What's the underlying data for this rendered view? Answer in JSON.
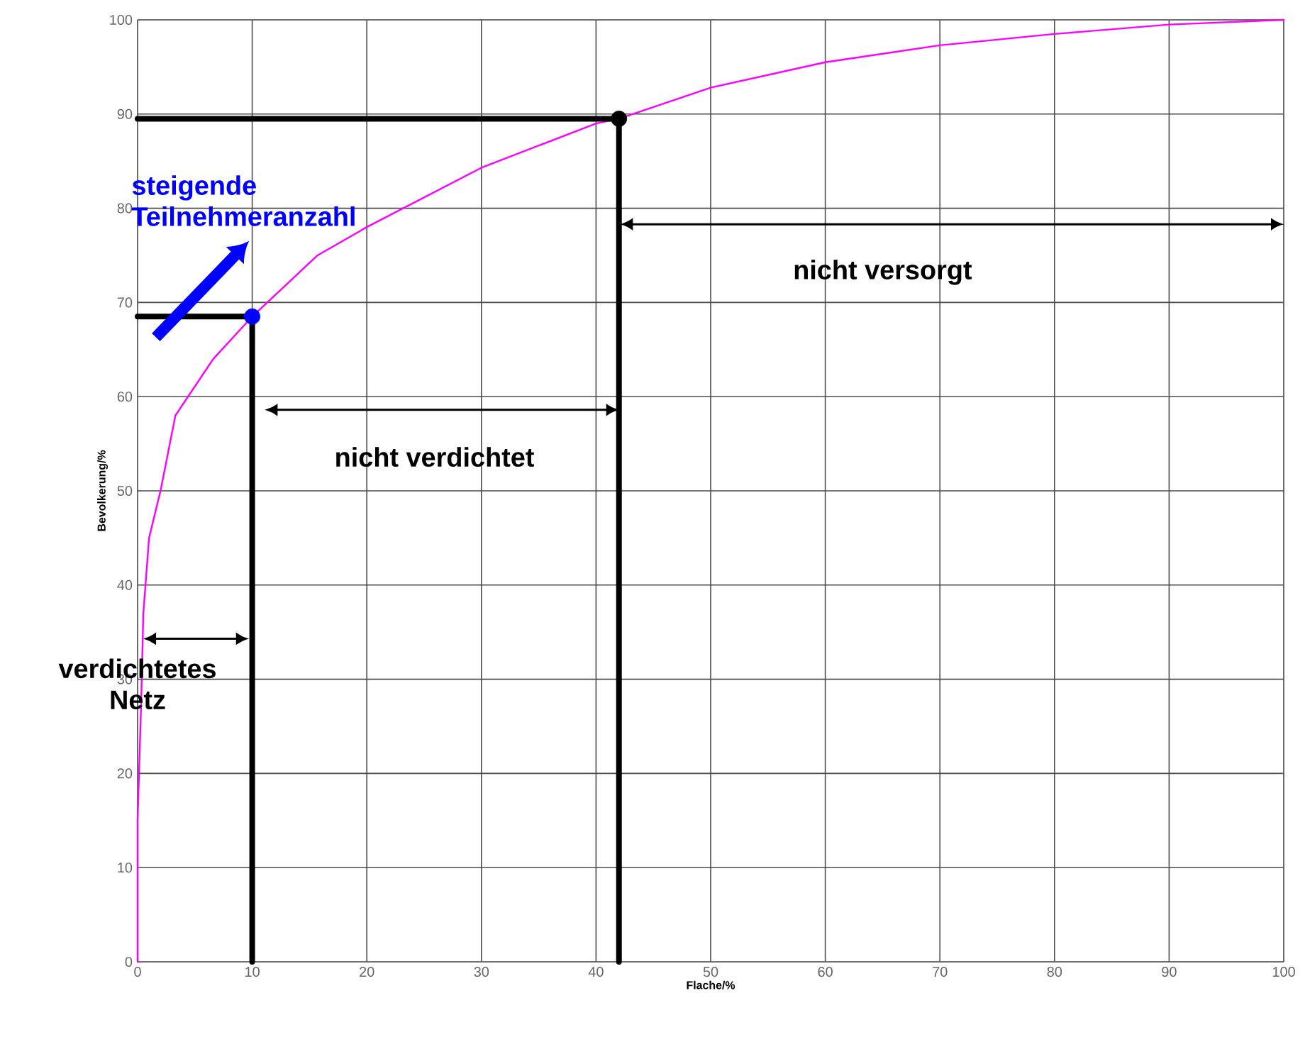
{
  "chart_data": {
    "type": "line",
    "xlabel": "Flache/%",
    "ylabel": "Bevolkerung/%",
    "xlim": [
      0,
      100
    ],
    "ylim": [
      0,
      100
    ],
    "xticks": [
      0,
      10,
      20,
      30,
      40,
      50,
      60,
      70,
      80,
      90,
      100
    ],
    "yticks": [
      0,
      10,
      20,
      30,
      40,
      50,
      60,
      70,
      80,
      90,
      100
    ],
    "grid": true,
    "series": [
      {
        "color": "#ff00ff",
        "x": [
          0,
          0,
          0.3,
          0.5,
          1,
          2,
          3.3,
          6.6,
          10,
          15.7,
          20,
          30,
          40,
          42,
          50,
          60,
          70,
          80,
          90,
          100
        ],
        "values": [
          0,
          15,
          27,
          37,
          45,
          50,
          58,
          64,
          68.5,
          75,
          78,
          84.3,
          89,
          89.5,
          92.8,
          95.5,
          97.3,
          98.5,
          99.5,
          100
        ]
      },
      {
        "color": "#000000",
        "x": [
          0,
          10,
          10
        ],
        "values": [
          68.5,
          68.5,
          0
        ]
      },
      {
        "color": "#000000",
        "x": [
          0,
          42,
          42
        ],
        "values": [
          89.5,
          89.5,
          0
        ]
      },
      {
        "type": "scatter",
        "color": "#0000ff",
        "marker": "circle",
        "x": [
          10
        ],
        "values": [
          68.5
        ]
      },
      {
        "type": "scatter",
        "color": "#000000",
        "marker": "circle",
        "x": [
          42
        ],
        "values": [
          89.5
        ]
      }
    ],
    "annotations": [
      "steigende Teilnehmeranzahl",
      "nicht versorgt",
      "nicht verdichtet",
      "verdichtetes Netz"
    ]
  }
}
